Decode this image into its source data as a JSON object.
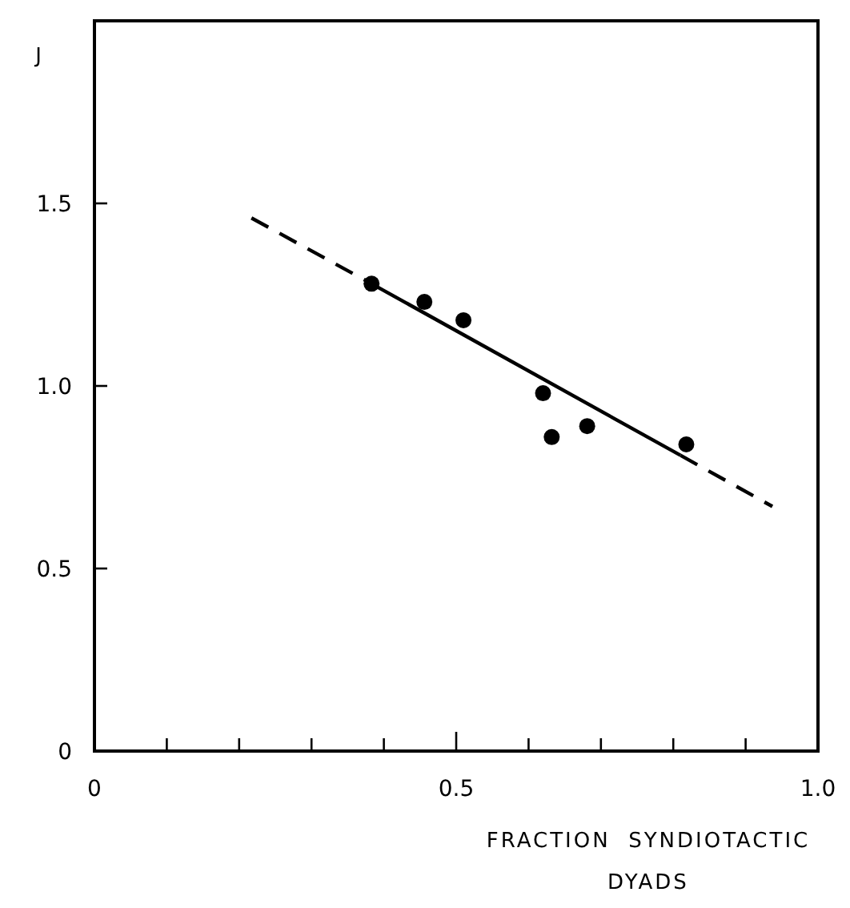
{
  "chart_data": {
    "type": "scatter",
    "xlabel": "FRACTION  SYNDIOTACTIC\nDYADS",
    "ylabel": "J",
    "xlim": [
      0,
      1.0
    ],
    "ylim": [
      0,
      2.0
    ],
    "xticks": [
      0,
      {
        "value": 0.1,
        "label": null
      },
      {
        "value": 0.2,
        "label": null
      },
      {
        "value": 0.3,
        "label": null
      },
      {
        "value": 0.4,
        "label": null
      },
      {
        "value": 0.5,
        "label": "0.5"
      },
      {
        "value": 0.6,
        "label": null
      },
      {
        "value": 0.7,
        "label": null
      },
      {
        "value": 0.8,
        "label": null
      },
      {
        "value": 0.9,
        "label": null
      },
      {
        "value": 1.0,
        "label": "1.0"
      }
    ],
    "yticks": [
      0,
      {
        "value": 0.5,
        "label": "0.5"
      },
      {
        "value": 1.0,
        "label": "1.0"
      },
      {
        "value": 1.5,
        "label": "1.5"
      }
    ],
    "grid": false,
    "series": [
      {
        "color": "#000000",
        "marker": "circle",
        "x": [
          0.383,
          0.456,
          0.51,
          0.62,
          0.632,
          0.681,
          0.818
        ],
        "values": [
          1.28,
          1.23,
          1.18,
          0.98,
          0.86,
          0.89,
          0.84
        ]
      },
      {
        "type": "line",
        "color": "#000000",
        "line_style": "dashed",
        "marker": "none",
        "x": [
          0.217,
          0.383
        ],
        "values": [
          1.46,
          1.28
        ]
      },
      {
        "type": "line",
        "color": "#000000",
        "line_style": "solid",
        "marker": "none",
        "x": [
          0.383,
          0.81
        ],
        "values": [
          1.28,
          0.81
        ]
      },
      {
        "type": "line",
        "color": "#000000",
        "line_style": "dashed",
        "marker": "none",
        "x": [
          0.81,
          0.937
        ],
        "values": [
          0.81,
          0.67
        ]
      }
    ]
  }
}
